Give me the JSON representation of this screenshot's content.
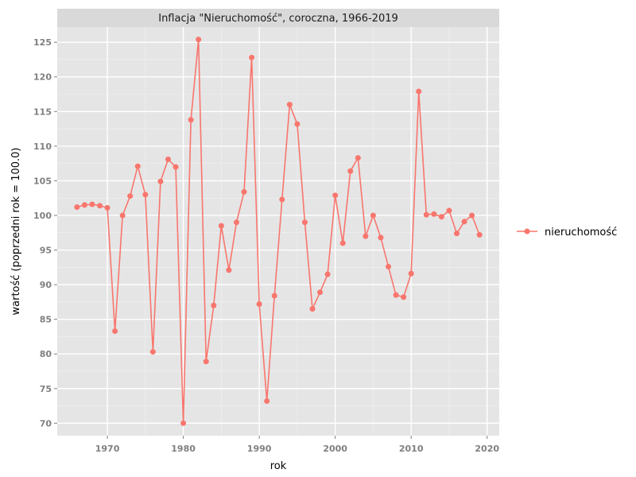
{
  "chart_data": {
    "type": "line",
    "title": "Inflacja \"Nieruchomość\", coroczna, 1966-2019",
    "xlabel": "rok",
    "ylabel": "wartość (poprzedni rok = 100.0)",
    "xlim": [
      1963.4,
      2021.6
    ],
    "ylim": [
      68.2,
      127.2
    ],
    "x_ticks": [
      1970,
      1980,
      1990,
      2000,
      2010,
      2020
    ],
    "y_ticks": [
      70,
      75,
      80,
      85,
      90,
      95,
      100,
      105,
      110,
      115,
      120,
      125
    ],
    "grid": true,
    "legend_position": "right",
    "series": [
      {
        "name": "nieruchomość",
        "color": "#f8766d",
        "x": [
          1966,
          1967,
          1968,
          1969,
          1970,
          1971,
          1972,
          1973,
          1974,
          1975,
          1976,
          1977,
          1978,
          1979,
          1980,
          1981,
          1982,
          1983,
          1984,
          1985,
          1986,
          1987,
          1988,
          1989,
          1990,
          1991,
          1992,
          1993,
          1994,
          1995,
          1996,
          1997,
          1998,
          1999,
          2000,
          2001,
          2002,
          2003,
          2004,
          2005,
          2006,
          2007,
          2008,
          2009,
          2010,
          2011,
          2012,
          2013,
          2014,
          2015,
          2016,
          2017,
          2018,
          2019
        ],
        "y": [
          101.2,
          101.5,
          101.6,
          101.4,
          101.1,
          83.3,
          100.0,
          102.8,
          107.1,
          103.0,
          80.3,
          104.9,
          108.1,
          107.0,
          70.0,
          113.8,
          125.4,
          78.9,
          87.0,
          98.5,
          92.1,
          99.0,
          103.4,
          122.8,
          87.2,
          73.2,
          88.4,
          102.3,
          116.0,
          113.2,
          99.0,
          86.5,
          88.9,
          91.5,
          102.9,
          96.0,
          106.4,
          108.3,
          97.0,
          100.0,
          96.8,
          92.6,
          88.5,
          88.2,
          91.6,
          117.9,
          100.1,
          100.2,
          99.8,
          100.7,
          97.4,
          99.1,
          100.0,
          97.2
        ]
      }
    ]
  }
}
